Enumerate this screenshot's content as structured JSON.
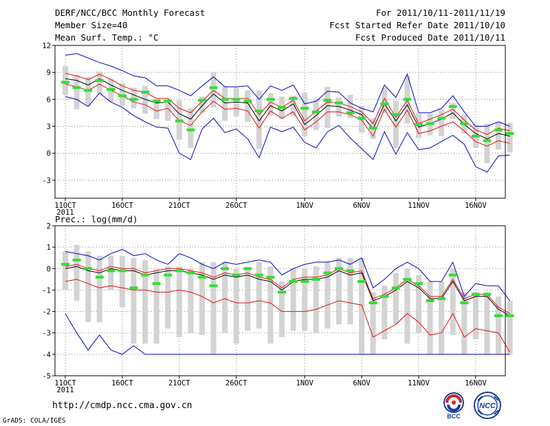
{
  "header": {
    "title": "DERF/NCC/BCC Monthly Forecast",
    "member_size": "Member Size=40",
    "variable": "Mean Surf. Temp.: °C",
    "period": "For 2011/10/11-2011/11/19",
    "started": "Fcst Started Refer Date 2011/10/10",
    "produced": "Fcst Produced Date 2011/10/11"
  },
  "footer": {
    "url": "http://cmdp.ncc.cma.gov.cn",
    "credit": "GrADS: COLA/IGES"
  },
  "logos": {
    "bcc": "BCC",
    "ncc": "NCC"
  },
  "colors": {
    "box": "#d3d3d3",
    "mean": "#000000",
    "spread": "#e01010",
    "envelope": "#0000cc",
    "median": "#33dd33",
    "grid": "#808080"
  },
  "chart_data": [
    {
      "type": "box_plot_ensemble",
      "title": "Mean Surf. Temp.: °C",
      "x_days": [
        11,
        12,
        13,
        14,
        15,
        16,
        17,
        18,
        19,
        20,
        21,
        22,
        23,
        24,
        25,
        26,
        27,
        28,
        29,
        30,
        31,
        32,
        33,
        34,
        35,
        36,
        37,
        38,
        39,
        40,
        41,
        42,
        43,
        44,
        45,
        46,
        47,
        48,
        49,
        50
      ],
      "x_tick_days": [
        11,
        16,
        21,
        26,
        32,
        37,
        42,
        47
      ],
      "x_tick_labels": [
        "11OCT",
        "16OCT",
        "21OCT",
        "26OCT",
        "1NOV",
        "6NOV",
        "11NOV",
        "16NOV"
      ],
      "x_sub_label": "2011",
      "ylim": [
        -5,
        12
      ],
      "yticks": [
        -3,
        0,
        3,
        6,
        9,
        12
      ],
      "median": [
        7.9,
        7.3,
        7.0,
        8.1,
        7.1,
        6.4,
        6.0,
        6.8,
        5.8,
        5.8,
        3.6,
        2.6,
        5.9,
        7.3,
        6.0,
        6.0,
        5.8,
        4.7,
        6.0,
        5.1,
        6.1,
        5.0,
        4.6,
        5.9,
        5.6,
        4.5,
        3.9,
        2.8,
        5.5,
        4.3,
        6.0,
        3.2,
        3.3,
        3.9,
        5.2,
        3.3,
        1.9,
        1.4,
        2.6,
        2.2
      ],
      "mean": [
        8.3,
        8.1,
        7.6,
        8.3,
        7.6,
        7.0,
        6.5,
        6.0,
        5.6,
        5.7,
        4.4,
        3.8,
        5.3,
        6.6,
        5.6,
        5.7,
        5.6,
        3.6,
        5.3,
        4.7,
        5.5,
        3.2,
        4.2,
        5.3,
        5.2,
        4.8,
        4.3,
        2.7,
        5.5,
        3.6,
        5.4,
        2.9,
        3.3,
        3.8,
        4.5,
        3.2,
        2.2,
        1.6,
        2.2,
        1.9
      ],
      "upper_red": [
        8.9,
        8.6,
        8.2,
        8.8,
        8.2,
        7.5,
        7.0,
        6.8,
        6.1,
        6.1,
        5.0,
        4.5,
        5.8,
        7.0,
        6.1,
        6.1,
        6.1,
        4.3,
        5.7,
        5.1,
        5.9,
        3.6,
        4.7,
        5.7,
        5.6,
        5.2,
        4.6,
        3.3,
        6.1,
        4.0,
        5.9,
        3.3,
        3.8,
        4.3,
        4.9,
        3.7,
        2.6,
        2.1,
        2.8,
        2.5
      ],
      "lower_red": [
        7.7,
        7.4,
        7.0,
        7.7,
        7.0,
        6.4,
        5.7,
        5.4,
        4.7,
        5.0,
        3.6,
        3.1,
        4.6,
        5.8,
        4.9,
        5.0,
        4.7,
        2.8,
        4.7,
        3.9,
        4.6,
        2.6,
        3.5,
        4.6,
        4.6,
        4.3,
        3.7,
        1.9,
        4.9,
        2.9,
        4.8,
        2.2,
        2.5,
        3.0,
        3.5,
        2.5,
        1.3,
        0.8,
        1.4,
        1.1
      ],
      "envelope_max": [
        10.9,
        11.1,
        10.6,
        10.1,
        9.7,
        9.2,
        8.6,
        8.4,
        7.5,
        7.5,
        7.0,
        6.4,
        7.5,
        8.5,
        7.4,
        7.4,
        7.5,
        6.0,
        7.5,
        7.0,
        7.6,
        5.5,
        5.8,
        6.9,
        6.8,
        5.6,
        5.0,
        4.6,
        7.6,
        6.2,
        8.8,
        4.5,
        4.5,
        5.0,
        6.4,
        4.6,
        3.0,
        3.0,
        3.5,
        3.0
      ],
      "envelope_min": [
        6.3,
        6.0,
        5.2,
        6.7,
        5.7,
        5.1,
        4.2,
        3.5,
        2.9,
        2.8,
        0.0,
        -0.7,
        2.7,
        3.9,
        2.3,
        2.7,
        1.6,
        -0.5,
        2.9,
        2.4,
        2.9,
        1.2,
        0.6,
        2.4,
        3.1,
        1.7,
        0.5,
        -0.7,
        2.4,
        -0.1,
        2.3,
        0.4,
        0.6,
        1.3,
        2.0,
        1.0,
        -1.5,
        -2.1,
        -0.3,
        -0.2
      ],
      "box_max": [
        9.7,
        8.7,
        8.5,
        9.1,
        8.3,
        7.8,
        7.3,
        7.5,
        6.1,
        6.0,
        5.9,
        5.0,
        6.3,
        9.0,
        7.5,
        7.3,
        7.0,
        7.0,
        6.7,
        6.3,
        6.4,
        6.7,
        6.0,
        7.4,
        6.2,
        6.5,
        5.3,
        3.9,
        7.3,
        5.8,
        8.6,
        4.4,
        4.4,
        4.9,
        5.6,
        4.3,
        3.2,
        3.3,
        3.5,
        3.4
      ],
      "box_min": [
        6.5,
        4.9,
        5.3,
        6.6,
        5.7,
        5.3,
        5.0,
        4.4,
        3.8,
        3.6,
        1.5,
        0.6,
        4.5,
        5.1,
        3.6,
        4.1,
        3.5,
        0.5,
        4.2,
        3.8,
        4.1,
        1.9,
        2.6,
        2.8,
        4.1,
        3.9,
        2.3,
        1.6,
        4.5,
        0.6,
        3.3,
        1.7,
        2.0,
        1.9,
        3.8,
        2.2,
        0.6,
        -1.1,
        0.4,
        0.1
      ]
    },
    {
      "type": "box_plot_ensemble",
      "title": "Prec.: log(mm/d)",
      "x_days": [
        11,
        12,
        13,
        14,
        15,
        16,
        17,
        18,
        19,
        20,
        21,
        22,
        23,
        24,
        25,
        26,
        27,
        28,
        29,
        30,
        31,
        32,
        33,
        34,
        35,
        36,
        37,
        38,
        39,
        40,
        41,
        42,
        43,
        44,
        45,
        46,
        47,
        48,
        49,
        50
      ],
      "x_tick_days": [
        11,
        16,
        21,
        26,
        32,
        37,
        42,
        47
      ],
      "x_tick_labels": [
        "11OCT",
        "16OCT",
        "21OCT",
        "26OCT",
        "1NOV",
        "6NOV",
        "11NOV",
        "16NOV"
      ],
      "x_sub_label": "2011",
      "ylim": [
        -5,
        2
      ],
      "yticks": [
        -5,
        -4,
        -3,
        -2,
        -1,
        0,
        1,
        2
      ],
      "median": [
        0.2,
        0.4,
        0.0,
        -0.4,
        -0.1,
        -0.1,
        -0.9,
        -0.3,
        -0.7,
        -0.3,
        -0.1,
        -0.2,
        -0.4,
        -0.8,
        0.0,
        -0.3,
        0.0,
        -0.3,
        -0.4,
        -1.1,
        -0.6,
        -0.6,
        -0.5,
        -0.2,
        0.0,
        -0.1,
        -0.6,
        -1.6,
        -1.3,
        -0.9,
        -0.5,
        -0.7,
        -1.5,
        -1.4,
        -0.3,
        -1.6,
        -1.2,
        -1.2,
        -2.2,
        -2.2
      ],
      "mean": [
        0.0,
        0.1,
        -0.1,
        -0.2,
        0.0,
        -0.1,
        -0.1,
        -0.3,
        -0.2,
        -0.1,
        -0.1,
        -0.2,
        -0.3,
        -0.5,
        -0.3,
        -0.4,
        -0.3,
        -0.5,
        -0.6,
        -1.0,
        -0.6,
        -0.5,
        -0.5,
        -0.4,
        -0.1,
        -0.3,
        -0.2,
        -1.5,
        -1.3,
        -1.0,
        -0.6,
        -0.9,
        -1.4,
        -1.4,
        -0.6,
        -1.5,
        -1.3,
        -1.3,
        -1.9,
        -2.2
      ],
      "upper_red": [
        0.1,
        0.2,
        0.0,
        -0.1,
        0.1,
        0.0,
        0.0,
        -0.2,
        -0.1,
        0.0,
        0.0,
        -0.1,
        -0.2,
        -0.4,
        -0.2,
        -0.3,
        -0.2,
        -0.4,
        -0.5,
        -0.9,
        -0.5,
        -0.4,
        -0.4,
        -0.3,
        0.0,
        -0.2,
        -0.1,
        -1.4,
        -1.2,
        -0.9,
        -0.5,
        -0.8,
        -1.3,
        -1.3,
        -0.5,
        -1.4,
        -1.2,
        -1.2,
        -1.8,
        -2.1
      ],
      "lower_red": [
        -0.6,
        -0.5,
        -0.7,
        -0.9,
        -0.8,
        -0.9,
        -1.0,
        -1.0,
        -1.1,
        -1.1,
        -1.0,
        -1.1,
        -1.3,
        -1.6,
        -1.4,
        -1.6,
        -1.6,
        -1.5,
        -1.6,
        -2.0,
        -2.0,
        -2.0,
        -1.9,
        -1.7,
        -1.5,
        -1.6,
        -1.7,
        -3.2,
        -2.9,
        -2.6,
        -2.1,
        -2.5,
        -3.1,
        -3.0,
        -2.1,
        -3.2,
        -2.8,
        -2.9,
        -3.0,
        -3.9
      ],
      "envelope_max": [
        0.8,
        0.7,
        0.6,
        0.4,
        0.7,
        0.9,
        0.6,
        0.7,
        0.4,
        0.2,
        0.7,
        0.5,
        0.2,
        0.0,
        0.3,
        0.2,
        0.3,
        0.4,
        0.3,
        -0.3,
        0.0,
        0.2,
        0.3,
        0.3,
        0.4,
        0.2,
        0.5,
        -0.9,
        -0.5,
        0.0,
        0.3,
        0.0,
        -0.6,
        -0.6,
        0.3,
        -1.3,
        -0.7,
        -0.8,
        -0.8,
        -1.5
      ],
      "envelope_min": [
        -2.1,
        -3.0,
        -3.8,
        -3.1,
        -3.8,
        -4.0,
        -3.6,
        -4.0,
        -4.0,
        -4.0,
        -4.0,
        -4.0,
        -4.0,
        -4.0,
        -4.0,
        -4.0,
        -4.0,
        -4.0,
        -4.0,
        -4.0,
        -4.0,
        -4.0,
        -4.0,
        -4.0,
        -4.0,
        -4.0,
        -4.0,
        -4.0,
        -4.0,
        -4.0,
        -4.0,
        -4.0,
        -4.0,
        -4.0,
        -4.0,
        -4.0,
        -4.0,
        -4.0,
        -4.0,
        -4.0
      ],
      "box_max": [
        0.8,
        1.1,
        0.8,
        0.6,
        0.6,
        0.6,
        0.5,
        0.4,
        0.0,
        0.1,
        0.1,
        0.0,
        0.3,
        0.3,
        0.3,
        0.0,
        0.0,
        0.3,
        0.1,
        -0.6,
        0.0,
        0.0,
        0.1,
        0.3,
        0.5,
        0.5,
        0.5,
        -1.1,
        -0.8,
        -0.2,
        0.0,
        -0.3,
        -0.6,
        -0.6,
        0.0,
        -1.1,
        -1.1,
        -1.1,
        -1.3,
        -1.5
      ],
      "box_min": [
        -1.0,
        -1.5,
        -2.5,
        -2.5,
        -1.0,
        -1.8,
        -3.5,
        -3.5,
        -3.5,
        -2.8,
        -3.2,
        -3.0,
        -3.1,
        -4.0,
        -3.0,
        -3.5,
        -2.9,
        -2.8,
        -3.5,
        -3.2,
        -2.9,
        -2.9,
        -3.0,
        -2.8,
        -2.6,
        -2.6,
        -4.0,
        -4.0,
        -3.3,
        -2.6,
        -3.5,
        -3.0,
        -4.0,
        -4.0,
        -3.1,
        -4.0,
        -3.3,
        -4.0,
        -4.0,
        -4.0
      ]
    }
  ]
}
